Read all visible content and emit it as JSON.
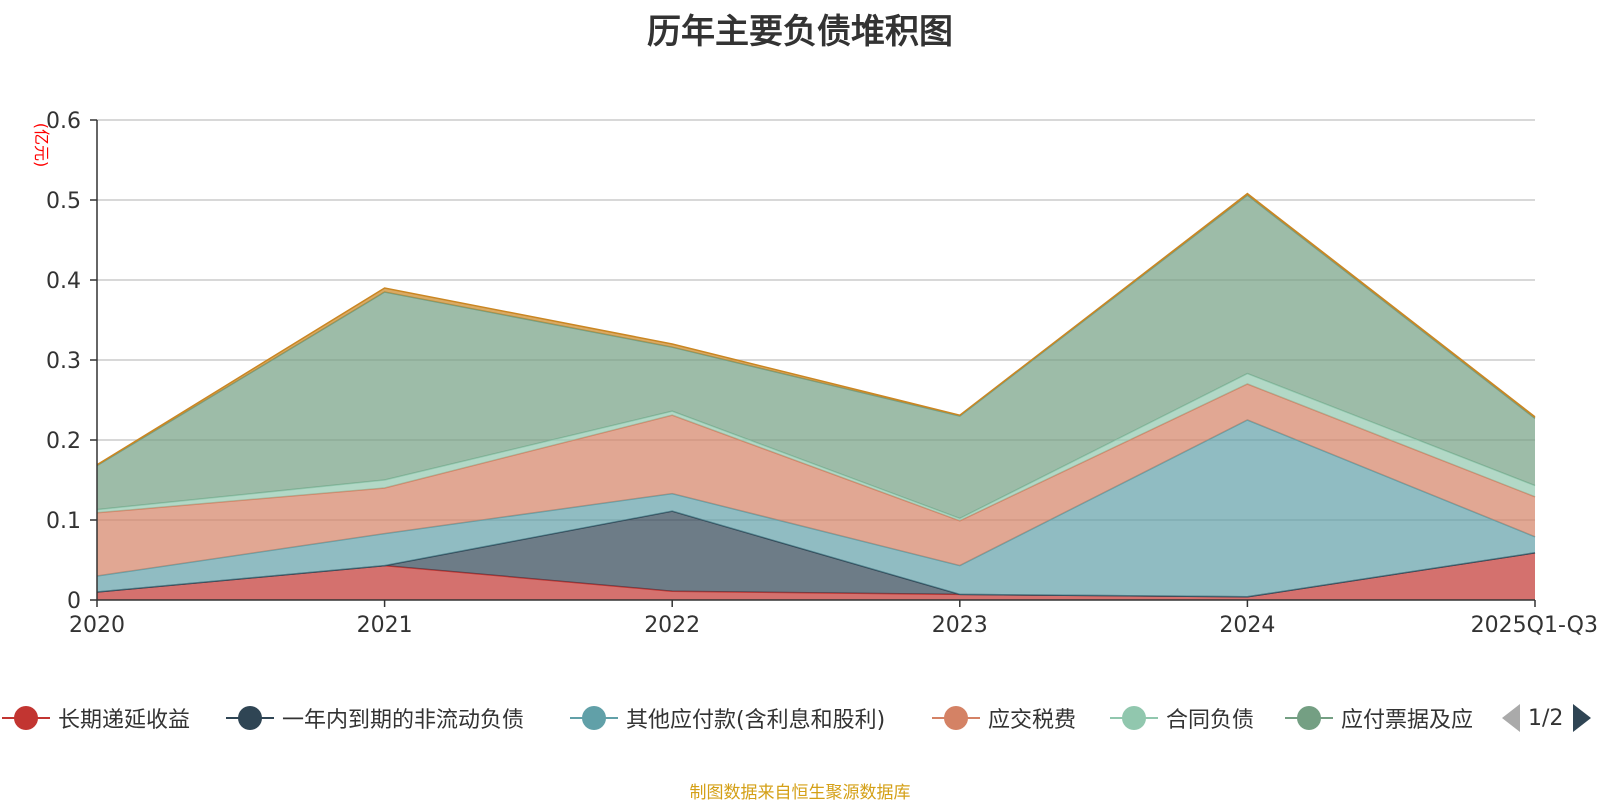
{
  "chart_data": {
    "type": "area",
    "stacked": true,
    "title": "历年主要负债堆积图",
    "ylabel": "(亿元)",
    "xlabel": "",
    "categories": [
      "2020",
      "2021",
      "2022",
      "2023",
      "2024",
      "2025Q1-Q3"
    ],
    "ylim": [
      0,
      0.6
    ],
    "yticks": [
      "0",
      "0.1",
      "0.2",
      "0.3",
      "0.4",
      "0.5",
      "0.6"
    ],
    "grid": true,
    "legend_position": "bottom",
    "series": [
      {
        "name": "长期递延收益",
        "color": "#c23531",
        "values": [
          0.01,
          0.043,
          0.011,
          0.007,
          0.004,
          0.059
        ]
      },
      {
        "name": "一年内到期的非流动负债",
        "color": "#2f4554",
        "values": [
          0.0,
          0.0,
          0.1,
          0.0,
          0.0,
          0.0
        ]
      },
      {
        "name": "其他应付款(含利息和股利)",
        "color": "#61a0a8",
        "values": [
          0.02,
          0.04,
          0.022,
          0.036,
          0.221,
          0.02
        ]
      },
      {
        "name": "应交税费",
        "color": "#d48265",
        "values": [
          0.079,
          0.057,
          0.098,
          0.056,
          0.045,
          0.05
        ]
      },
      {
        "name": "合同负债",
        "color": "#91c7ae",
        "values": [
          0.004,
          0.01,
          0.005,
          0.003,
          0.013,
          0.014
        ]
      },
      {
        "name": "应付票据及应付账款",
        "color": "#749f83",
        "values": [
          0.055,
          0.235,
          0.08,
          0.128,
          0.223,
          0.084
        ]
      },
      {
        "name": "",
        "color": "#ca8622",
        "values": [
          0.001,
          0.005,
          0.004,
          0.001,
          0.002,
          0.002
        ]
      }
    ]
  },
  "legend": {
    "items": [
      {
        "label": "长期递延收益",
        "color": "#c23531"
      },
      {
        "label": "一年内到期的非流动负债",
        "color": "#2f4554"
      },
      {
        "label": "其他应付款(含利息和股利)",
        "color": "#61a0a8"
      },
      {
        "label": "应交税费",
        "color": "#d48265"
      },
      {
        "label": "合同负债",
        "color": "#91c7ae"
      },
      {
        "label": "应付票据及应",
        "color": "#749f83"
      }
    ],
    "page_indicator": "1/2"
  },
  "source_note": "制图数据来自恒生聚源数据库"
}
